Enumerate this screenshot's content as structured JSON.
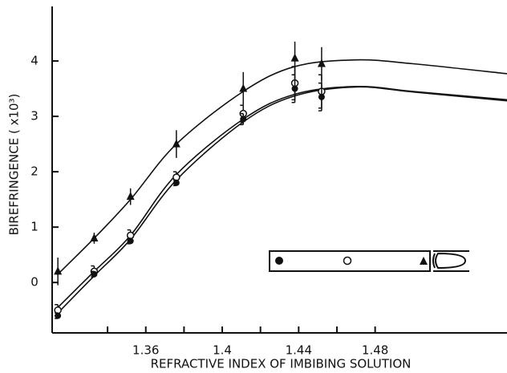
{
  "chart_data": {
    "type": "scatter",
    "x_label": "REFRACTIVE INDEX OF IMBIBING SOLUTION",
    "y_label": "BIREFRINGENCE ( x10³)",
    "xlim": [
      1.311,
      1.549
    ],
    "ylim": [
      -0.91,
      5
    ],
    "xticks": [
      1.36,
      1.4,
      1.44,
      1.48
    ],
    "xminorticks": [
      1.34,
      1.38,
      1.42,
      1.46
    ],
    "yticks": [
      0,
      1,
      2,
      3,
      4
    ],
    "series": [
      {
        "marker": "triangle",
        "color": "#111",
        "x": [
          1.314,
          1.333,
          1.352,
          1.376,
          1.411,
          1.438,
          1.452
        ],
        "values": [
          0.2,
          0.8,
          1.55,
          2.5,
          3.5,
          4.05,
          3.95
        ],
        "errors": [
          0.25,
          0.1,
          0.15,
          0.25,
          0.3,
          0.3,
          0.3
        ]
      },
      {
        "marker": "open-circle",
        "color": "#111",
        "x": [
          1.314,
          1.333,
          1.352,
          1.376,
          1.411,
          1.438,
          1.452
        ],
        "values": [
          -0.5,
          0.2,
          0.85,
          1.9,
          3.05,
          3.6,
          3.45
        ],
        "errors": [
          0.1,
          0.1,
          0.1,
          0.1,
          0.15,
          0.3,
          0.3
        ]
      },
      {
        "marker": "filled-circle",
        "color": "#111",
        "x": [
          1.314,
          1.333,
          1.352,
          1.376,
          1.411,
          1.438,
          1.452
        ],
        "values": [
          -0.6,
          0.15,
          0.75,
          1.8,
          2.95,
          3.5,
          3.35
        ],
        "errors": [
          0.05,
          0.05,
          0.05,
          0.05,
          0.1,
          0.25,
          0.25
        ]
      }
    ],
    "curves": [
      {
        "x": [
          1.314,
          1.333,
          1.352,
          1.376,
          1.411,
          1.438,
          1.47,
          1.5,
          1.549
        ],
        "values": [
          0.15,
          0.8,
          1.5,
          2.5,
          3.45,
          3.9,
          4.02,
          3.95,
          3.77
        ]
      },
      {
        "x": [
          1.314,
          1.333,
          1.352,
          1.376,
          1.411,
          1.438,
          1.47,
          1.5,
          1.549
        ],
        "values": [
          -0.45,
          0.2,
          0.85,
          1.95,
          2.95,
          3.4,
          3.54,
          3.45,
          3.3
        ]
      },
      {
        "x": [
          1.314,
          1.333,
          1.352,
          1.376,
          1.411,
          1.438,
          1.47,
          1.5,
          1.549
        ],
        "values": [
          -0.55,
          0.12,
          0.78,
          1.85,
          2.9,
          3.37,
          3.53,
          3.44,
          3.28
        ]
      }
    ]
  }
}
